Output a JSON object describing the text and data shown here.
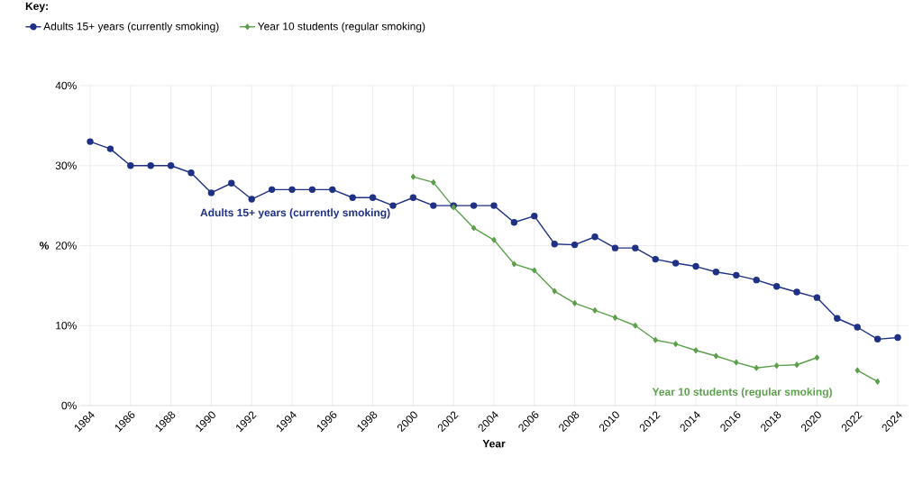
{
  "chart_data": {
    "type": "line",
    "legend_title": "Key:",
    "xlabel": "Year",
    "ylabel": "%",
    "x": [
      1984,
      1985,
      1986,
      1987,
      1988,
      1989,
      1990,
      1991,
      1992,
      1993,
      1994,
      1995,
      1996,
      1997,
      1998,
      1999,
      2000,
      2001,
      2002,
      2003,
      2004,
      2005,
      2006,
      2007,
      2008,
      2009,
      2010,
      2011,
      2012,
      2013,
      2014,
      2015,
      2016,
      2017,
      2018,
      2019,
      2020,
      2021,
      2022,
      2023,
      2024
    ],
    "series": [
      {
        "name": "Adults 15+ years (currently smoking)",
        "color": "#1f3185",
        "marker": "circle",
        "values": [
          33.0,
          32.1,
          30.0,
          30.0,
          30.0,
          29.1,
          26.6,
          27.8,
          25.8,
          27.0,
          27.0,
          27.0,
          27.0,
          26.0,
          26.0,
          25.0,
          26.0,
          25.0,
          25.0,
          25.0,
          25.0,
          22.9,
          23.7,
          20.2,
          20.1,
          21.1,
          19.7,
          19.7,
          18.3,
          17.8,
          17.4,
          16.7,
          16.3,
          15.7,
          14.9,
          14.2,
          13.5,
          10.9,
          9.8,
          8.3,
          8.5
        ]
      },
      {
        "name": "Year 10 students (regular smoking)",
        "color": "#5ba04a",
        "marker": "diamond",
        "values": [
          null,
          null,
          null,
          null,
          null,
          null,
          null,
          null,
          null,
          null,
          null,
          null,
          null,
          null,
          null,
          null,
          28.6,
          27.9,
          24.8,
          22.2,
          20.7,
          17.7,
          16.9,
          14.3,
          12.8,
          11.9,
          11.0,
          10.0,
          8.2,
          7.7,
          6.9,
          6.2,
          5.4,
          4.7,
          5.0,
          5.1,
          6.0,
          null,
          4.4,
          3.0,
          null
        ]
      }
    ],
    "annotations": [
      "Adults 15+ years (currently smoking)",
      "Year 10 students (regular smoking)"
    ],
    "xlim": [
      1983.5,
      2024.5
    ],
    "ylim": [
      0,
      40
    ],
    "xticks": [
      1984,
      1986,
      1988,
      1990,
      1992,
      1994,
      1996,
      1998,
      2000,
      2002,
      2004,
      2006,
      2008,
      2010,
      2012,
      2014,
      2016,
      2018,
      2020,
      2022,
      2024
    ],
    "yticks": [
      {
        "value": 0,
        "label": "0%"
      },
      {
        "value": 10,
        "label": "10%"
      },
      {
        "value": 20,
        "label": "20%"
      },
      {
        "value": 30,
        "label": "30%"
      },
      {
        "value": 40,
        "label": "40%"
      }
    ],
    "grid": true,
    "legend": "top left",
    "line_style": "solid"
  }
}
